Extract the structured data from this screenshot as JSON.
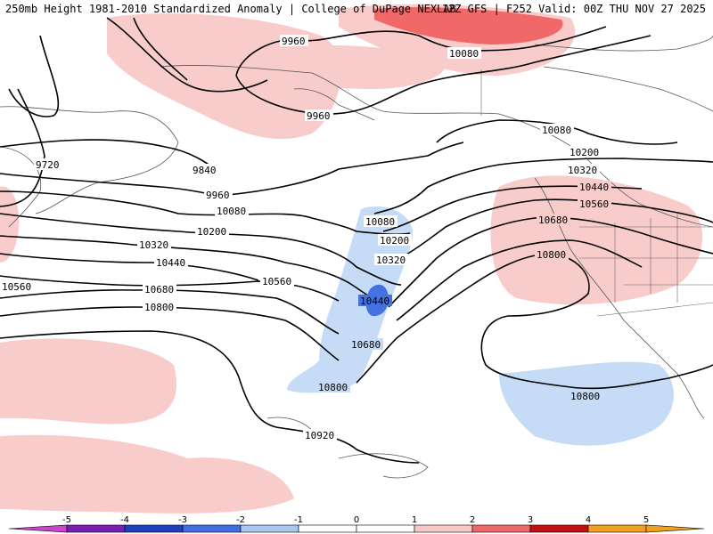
{
  "header": {
    "left": "250mb Height 1981-2010 Standardized Anomaly | College of DuPage NEXLAB",
    "right": "12Z GFS | F252 Valid: 00Z THU NOV 27 2025"
  },
  "contour_labels": [
    {
      "text": "9960"
    },
    {
      "text": "9960"
    },
    {
      "text": "10080"
    },
    {
      "text": "9720"
    },
    {
      "text": "9840"
    },
    {
      "text": "9960"
    },
    {
      "text": "10080"
    },
    {
      "text": "10200"
    },
    {
      "text": "10320"
    },
    {
      "text": "10440"
    },
    {
      "text": "10560"
    },
    {
      "text": "10680"
    },
    {
      "text": "10800"
    },
    {
      "text": "10080"
    },
    {
      "text": "10200"
    },
    {
      "text": "10320"
    },
    {
      "text": "10560"
    },
    {
      "text": "10440"
    },
    {
      "text": "10680"
    },
    {
      "text": "10800"
    },
    {
      "text": "10920"
    },
    {
      "text": "10080"
    },
    {
      "text": "10200"
    },
    {
      "text": "10320"
    },
    {
      "text": "10440"
    },
    {
      "text": "10560"
    },
    {
      "text": "10680"
    },
    {
      "text": "10800"
    },
    {
      "text": "10800"
    }
  ],
  "colorbar": {
    "ticks": [
      "-5",
      "-4",
      "-3",
      "-2",
      "-1",
      "0",
      "1",
      "2",
      "3",
      "4",
      "5"
    ],
    "colors": [
      "#cc44cc",
      "#7a1fb0",
      "#1f3fbf",
      "#3f6fe0",
      "#a8c8f0",
      "#ffffff",
      "#ffffff",
      "#f8c8c8",
      "#f06868",
      "#c01010",
      "#f0a020"
    ]
  }
}
